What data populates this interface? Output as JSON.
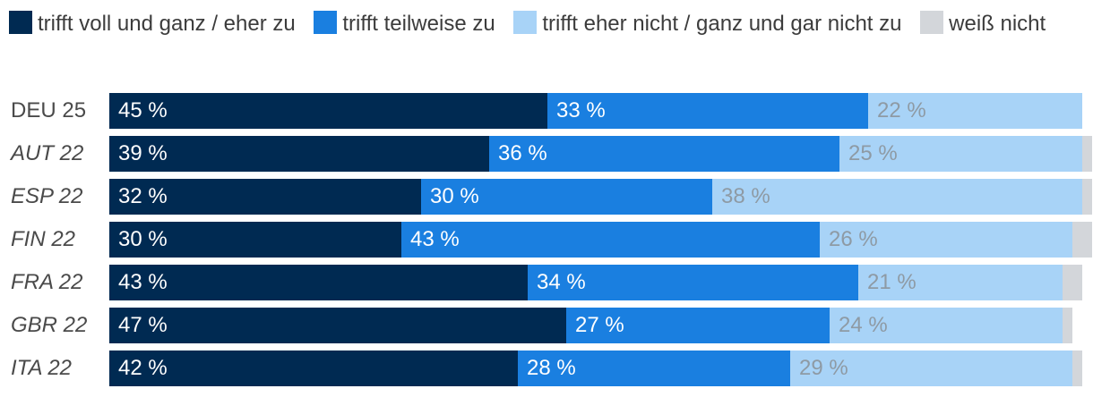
{
  "chart_data": {
    "type": "bar",
    "orientation": "horizontal",
    "stacked": true,
    "categories": [
      "DEU 25",
      "AUT 22",
      "ESP 22",
      "FIN 22",
      "FRA 22",
      "GBR 22",
      "ITA 22"
    ],
    "category_italic": [
      false,
      true,
      true,
      true,
      true,
      true,
      true
    ],
    "series": [
      {
        "name": "trifft voll und ganz / eher zu",
        "color": "#002a52",
        "label_color": "#ffffff",
        "values": [
          45,
          39,
          32,
          30,
          43,
          47,
          42
        ],
        "labels": [
          "45 %",
          "39 %",
          "32 %",
          "30 %",
          "43 %",
          "47 %",
          "42 %"
        ]
      },
      {
        "name": "trifft teilweise zu",
        "color": "#1a7fe0",
        "label_color": "#ffffff",
        "values": [
          33,
          36,
          30,
          43,
          34,
          27,
          28
        ],
        "labels": [
          "33 %",
          "36 %",
          "30 %",
          "43 %",
          "34 %",
          "27 %",
          "28 %"
        ]
      },
      {
        "name": "trifft eher nicht / ganz und gar nicht zu",
        "color": "#a8d3f7",
        "label_color": "#8e9aa4",
        "values": [
          22,
          25,
          38,
          26,
          21,
          24,
          29
        ],
        "labels": [
          "22 %",
          "25 %",
          "38 %",
          "26 %",
          "21 %",
          "24 %",
          "29 %"
        ]
      },
      {
        "name": "weiß nicht",
        "color": "#d3d6da",
        "label_color": "#8e9aa4",
        "values": [
          0,
          1,
          1,
          2,
          2,
          1,
          1
        ],
        "labels": [
          "",
          "",
          "",
          "",
          "",
          "",
          ""
        ]
      }
    ],
    "xlim": [
      0,
      100
    ],
    "legend_position": "top"
  }
}
